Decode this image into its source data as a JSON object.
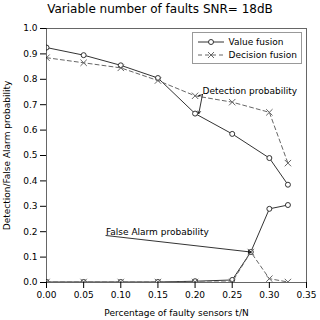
{
  "chart_data": {
    "type": "line",
    "title": "Variable number of faults SNR= 18dB",
    "xlabel": "Percentage of faulty sensors t/N",
    "ylabel": "Detection/False Alarm probability",
    "xlim": [
      0,
      0.35
    ],
    "ylim": [
      0,
      1.0
    ],
    "xticks": [
      {
        "value": 0,
        "label": "0.00"
      },
      0.05,
      {
        "value": 0.1,
        "label": "0.10"
      },
      0.15,
      {
        "value": 0.2,
        "label": "0.20"
      },
      0.25,
      {
        "value": 0.3,
        "label": "0.30"
      },
      0.35
    ],
    "yticks": [
      {
        "value": 0,
        "label": "0.0"
      },
      0.1,
      0.2,
      0.3,
      0.4,
      0.5,
      0.6,
      0.7,
      0.8,
      0.9,
      {
        "value": 1.0,
        "label": "1.0"
      }
    ],
    "grid": false,
    "legend": "upper right",
    "series": [
      {
        "name": "Value fusion",
        "color": "#333333",
        "marker": "circle",
        "line_style": "solid",
        "x": [
          0.0,
          0.05,
          0.1,
          0.15,
          0.2,
          0.25,
          0.3,
          0.325
        ],
        "values": [
          0.925,
          0.895,
          0.855,
          0.805,
          0.665,
          0.585,
          0.49,
          0.385
        ]
      },
      {
        "name": "Decision fusion",
        "color": "#666666",
        "marker": "x",
        "line_style": "dashed",
        "x": [
          0.0,
          0.05,
          0.1,
          0.15,
          0.2,
          0.25,
          0.3,
          0.325
        ],
        "values": [
          0.885,
          0.865,
          0.845,
          0.795,
          0.735,
          0.71,
          0.67,
          0.47
        ]
      },
      {
        "color": "#333333",
        "marker": "circle",
        "line_style": "solid",
        "x": [
          0.0,
          0.05,
          0.1,
          0.15,
          0.2,
          0.25,
          0.275,
          0.3,
          0.325
        ],
        "values": [
          0.002,
          0.002,
          0.002,
          0.002,
          0.005,
          0.01,
          0.12,
          0.29,
          0.305
        ]
      },
      {
        "color": "#666666",
        "marker": "x",
        "line_style": "dashed",
        "x": [
          0.0,
          0.05,
          0.1,
          0.15,
          0.2,
          0.25,
          0.275,
          0.3,
          0.325
        ],
        "values": [
          0.002,
          0.002,
          0.002,
          0.002,
          0.002,
          0.002,
          0.12,
          0.015,
          0.002
        ]
      }
    ],
    "annotations": [
      {
        "text": "Detection probability",
        "x": 0.21,
        "y": 0.74,
        "arrows": [
          {
            "x": 0.205,
            "y": 0.665
          },
          {
            "x": 0.205,
            "y": 0.735
          }
        ]
      },
      {
        "text": "False Alarm probability",
        "x": 0.08,
        "y": 0.185,
        "arrows": [
          {
            "x": 0.275,
            "y": 0.12
          }
        ]
      }
    ]
  }
}
